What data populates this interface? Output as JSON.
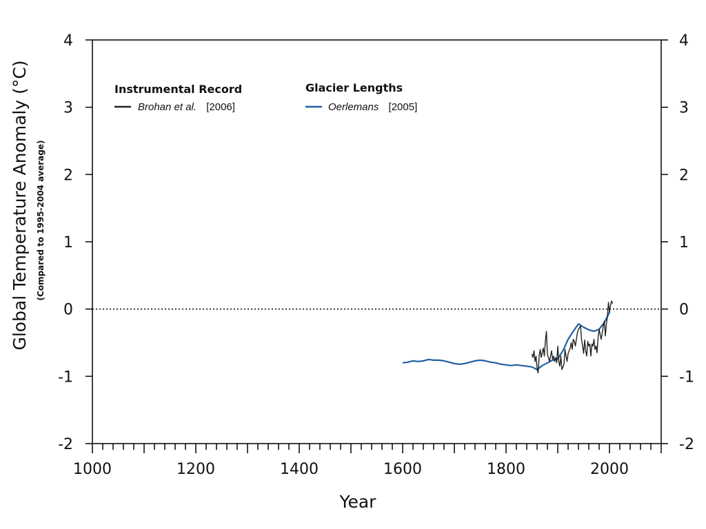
{
  "chart_data": {
    "type": "line",
    "xlabel": "Year",
    "ylabel": "Global Temperature Anomaly (°C)",
    "ylabel_sub": "(Compared to 1995-2004 average)",
    "xlim": [
      1000,
      2100
    ],
    "ylim": [
      -2,
      4
    ],
    "x_ticks": [
      "1000",
      "1200",
      "1400",
      "1600",
      "1800",
      "2000"
    ],
    "y_ticks": [
      "-2",
      "-1",
      "0",
      "1",
      "2",
      "3",
      "4"
    ],
    "grid": false,
    "zero_line": "dotted",
    "legend": {
      "groups": [
        {
          "heading": "Instrumental Record",
          "entries": [
            {
              "author": "Brohan et al.",
              "year": "[2006]",
              "color": "#222222"
            }
          ]
        },
        {
          "heading": "Glacier Lengths",
          "entries": [
            {
              "author": "Oerlemans",
              "year": "[2005]",
              "color": "#1f5fa6"
            }
          ]
        }
      ]
    },
    "series": [
      {
        "name": "Oerlemans [2005]",
        "color": "#1f5fa6",
        "x": [
          1600,
          1610,
          1620,
          1630,
          1640,
          1650,
          1660,
          1670,
          1680,
          1690,
          1700,
          1710,
          1720,
          1730,
          1740,
          1750,
          1760,
          1770,
          1780,
          1790,
          1800,
          1810,
          1820,
          1830,
          1840,
          1850,
          1860,
          1870,
          1880,
          1890,
          1900,
          1910,
          1920,
          1930,
          1940,
          1950,
          1960,
          1970,
          1980,
          1990,
          2000
        ],
        "y": [
          -0.8,
          -0.79,
          -0.77,
          -0.78,
          -0.77,
          -0.75,
          -0.76,
          -0.76,
          -0.77,
          -0.79,
          -0.81,
          -0.82,
          -0.81,
          -0.79,
          -0.77,
          -0.76,
          -0.77,
          -0.79,
          -0.8,
          -0.82,
          -0.83,
          -0.84,
          -0.83,
          -0.84,
          -0.85,
          -0.86,
          -0.9,
          -0.84,
          -0.8,
          -0.76,
          -0.74,
          -0.62,
          -0.45,
          -0.33,
          -0.22,
          -0.27,
          -0.31,
          -0.33,
          -0.3,
          -0.2,
          -0.05
        ]
      },
      {
        "name": "Brohan et al. [2006]",
        "color": "#222222",
        "x": [
          1850,
          1852,
          1854,
          1856,
          1858,
          1860,
          1862,
          1864,
          1866,
          1868,
          1870,
          1872,
          1874,
          1876,
          1878,
          1880,
          1882,
          1884,
          1886,
          1888,
          1890,
          1892,
          1894,
          1896,
          1898,
          1900,
          1902,
          1904,
          1906,
          1908,
          1910,
          1912,
          1914,
          1916,
          1918,
          1920,
          1922,
          1924,
          1926,
          1928,
          1930,
          1932,
          1934,
          1936,
          1938,
          1940,
          1942,
          1944,
          1946,
          1948,
          1950,
          1952,
          1954,
          1956,
          1958,
          1960,
          1962,
          1964,
          1966,
          1968,
          1970,
          1972,
          1974,
          1976,
          1978,
          1980,
          1982,
          1984,
          1986,
          1988,
          1990,
          1992,
          1994,
          1996,
          1998,
          2000,
          2002,
          2004,
          2006
        ],
        "y": [
          -0.67,
          -0.72,
          -0.62,
          -0.78,
          -0.7,
          -0.88,
          -0.95,
          -0.7,
          -0.6,
          -0.72,
          -0.65,
          -0.58,
          -0.7,
          -0.48,
          -0.33,
          -0.68,
          -0.72,
          -0.78,
          -0.7,
          -0.62,
          -0.75,
          -0.7,
          -0.78,
          -0.72,
          -0.8,
          -0.55,
          -0.78,
          -0.85,
          -0.7,
          -0.9,
          -0.86,
          -0.82,
          -0.6,
          -0.7,
          -0.78,
          -0.66,
          -0.62,
          -0.58,
          -0.5,
          -0.6,
          -0.45,
          -0.48,
          -0.55,
          -0.45,
          -0.35,
          -0.3,
          -0.28,
          -0.25,
          -0.45,
          -0.55,
          -0.66,
          -0.46,
          -0.62,
          -0.7,
          -0.48,
          -0.55,
          -0.52,
          -0.7,
          -0.52,
          -0.55,
          -0.45,
          -0.6,
          -0.55,
          -0.65,
          -0.42,
          -0.3,
          -0.38,
          -0.45,
          -0.35,
          -0.25,
          -0.18,
          -0.4,
          -0.22,
          -0.12,
          0.1,
          -0.05,
          0.05,
          0.12,
          0.08
        ]
      }
    ]
  }
}
